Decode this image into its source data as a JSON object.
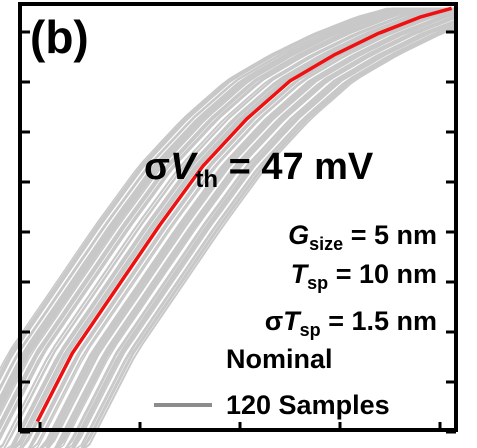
{
  "panel": {
    "label": "(b)",
    "sigma_vth": {
      "sym": "σ",
      "var": "V",
      "sub": "th",
      "rest": " = 47 mV"
    },
    "params": [
      {
        "pre": "",
        "var": "G",
        "sub": "size",
        "rest": " = 5 nm"
      },
      {
        "pre": "",
        "var": "T",
        "sub": "sp",
        "rest": " = 10 nm"
      },
      {
        "pre": "σ",
        "var": "T",
        "sub": "sp",
        "rest": " = 1.5 nm"
      }
    ],
    "legend": {
      "nominal": "Nominal",
      "samples": "120 Samples"
    }
  },
  "colors": {
    "nominal": "#ee1111",
    "samples": "#c8c8c8",
    "legend_samples": "#8c8c8c",
    "axes": "#000000"
  },
  "chart_data": {
    "type": "line",
    "title": "",
    "xlabel": "",
    "ylabel": "",
    "xlim": [
      0,
      1
    ],
    "ylim": [
      0,
      1
    ],
    "grid": false,
    "legend_location": "bottom-right",
    "nominal": {
      "name": "Nominal",
      "x": [
        0.04,
        0.12,
        0.22,
        0.32,
        0.42,
        0.52,
        0.62,
        0.72,
        0.82,
        0.92,
        0.99
      ],
      "y": [
        0.02,
        0.18,
        0.33,
        0.48,
        0.62,
        0.73,
        0.82,
        0.88,
        0.93,
        0.97,
        0.99
      ]
    },
    "samples": {
      "name": "120 Samples",
      "count": 120,
      "color": "#c8c8c8"
    }
  }
}
